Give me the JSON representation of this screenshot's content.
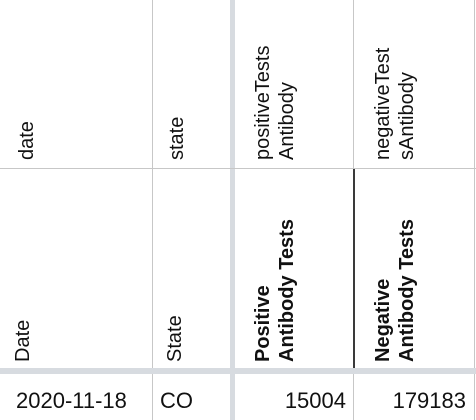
{
  "sheet": {
    "field_row": {
      "col_a": "date",
      "col_b": "state",
      "col_c_line1": "positiveTests",
      "col_c_line2": "Antibody",
      "col_d_line1": "negativeTest",
      "col_d_line2": "sAntibody"
    },
    "label_row": {
      "col_a": "Date",
      "col_b": "State",
      "col_c_line1": "Positive",
      "col_c_line2": "Antibody Tests",
      "col_d_line1": "Negative",
      "col_d_line2": "Antibody Tests"
    },
    "data_row": {
      "date": "2020-11-18",
      "state": "CO",
      "positive": "15004",
      "negative": "179183"
    }
  }
}
